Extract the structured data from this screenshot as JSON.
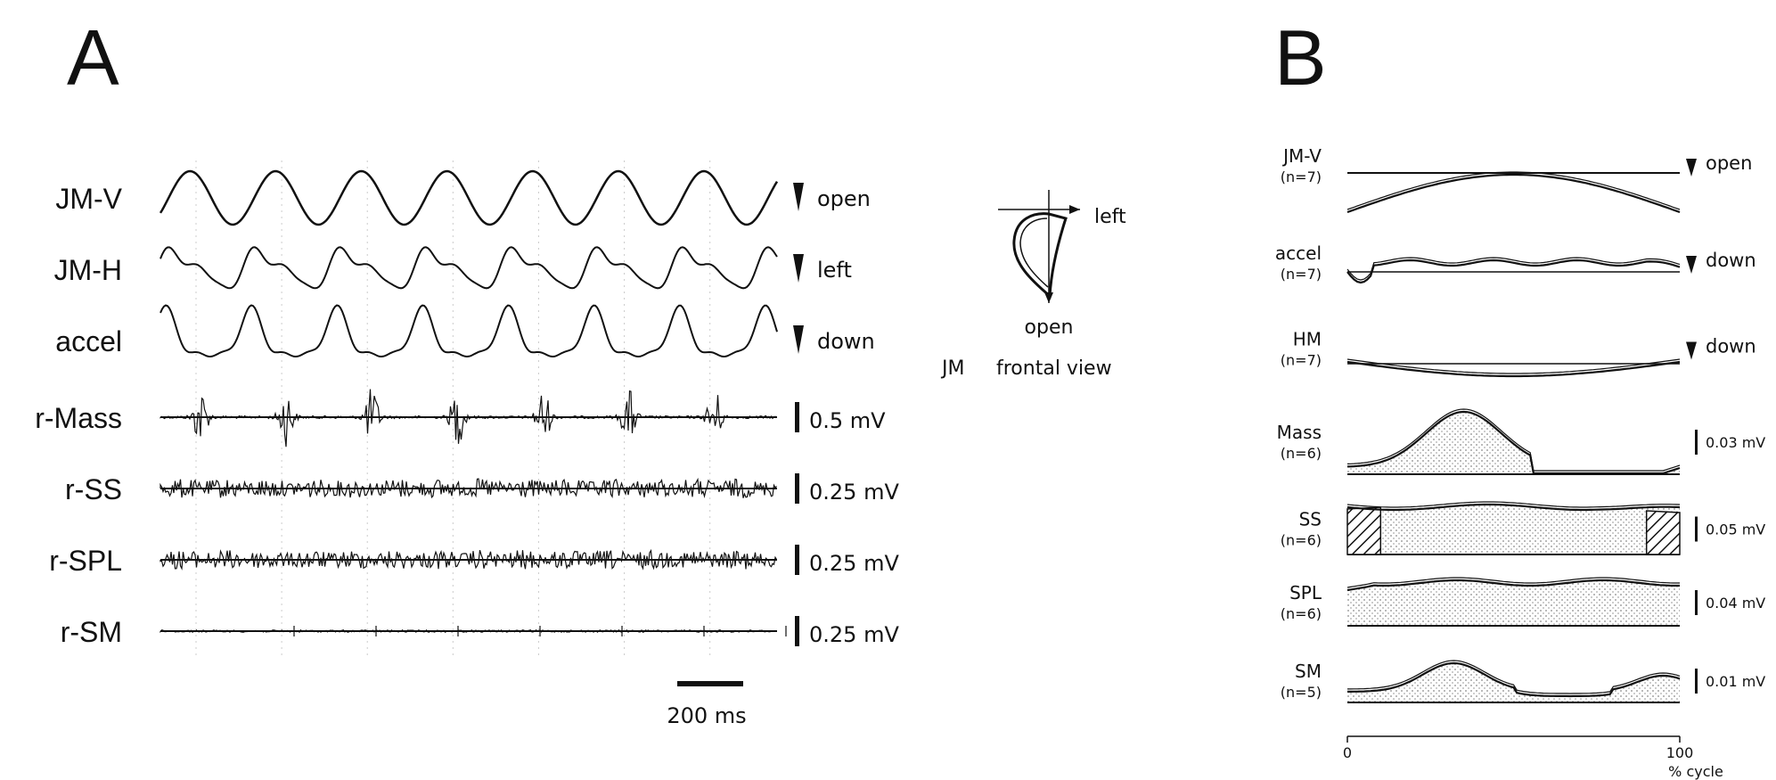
{
  "chart_data": [
    {
      "type": "line",
      "panel": "A",
      "series": [
        {
          "name": "JM-V",
          "direction": "open",
          "cycles": 7,
          "kind": "sine"
        },
        {
          "name": "JM-H",
          "direction": "left",
          "cycles": 7,
          "kind": "wavy"
        },
        {
          "name": "accel",
          "direction": "down",
          "cycles": 7,
          "kind": "wavy"
        },
        {
          "name": "r-Mass",
          "scale": "0.5 mV",
          "bursts": 7,
          "kind": "emg-burst"
        },
        {
          "name": "r-SS",
          "scale": "0.25 mV",
          "kind": "emg-noise"
        },
        {
          "name": "r-SPL",
          "scale": "0.25 mV",
          "kind": "emg-noise"
        },
        {
          "name": "r-SM",
          "scale": "0.25 mV",
          "kind": "emg-quiet"
        }
      ],
      "time_scale": "200 ms",
      "inset": {
        "label_right": "left",
        "label_down": "open",
        "caption_jm": "JM",
        "caption_view": "frontal view"
      }
    },
    {
      "type": "line",
      "panel": "B",
      "xlabel": "% cycle",
      "xlim": [
        0,
        100
      ],
      "xticks": [
        "0",
        "100"
      ],
      "series": [
        {
          "name": "JM-V",
          "n": "(n=7)",
          "direction": "open"
        },
        {
          "name": "accel",
          "n": "(n=7)",
          "direction": "down"
        },
        {
          "name": "HM",
          "n": "(n=7)",
          "direction": "down"
        },
        {
          "name": "Mass",
          "n": "(n=6)",
          "scale": "0.03 mV",
          "peak_at": 35
        },
        {
          "name": "SS",
          "n": "(n=6)",
          "scale": "0.05 mV"
        },
        {
          "name": "SPL",
          "n": "(n=6)",
          "scale": "0.04 mV"
        },
        {
          "name": "SM",
          "n": "(n=5)",
          "scale": "0.01 mV",
          "peak_at": [
            32,
            95
          ]
        }
      ]
    }
  ],
  "panel_a_letter": "A",
  "panel_b_letter": "B"
}
